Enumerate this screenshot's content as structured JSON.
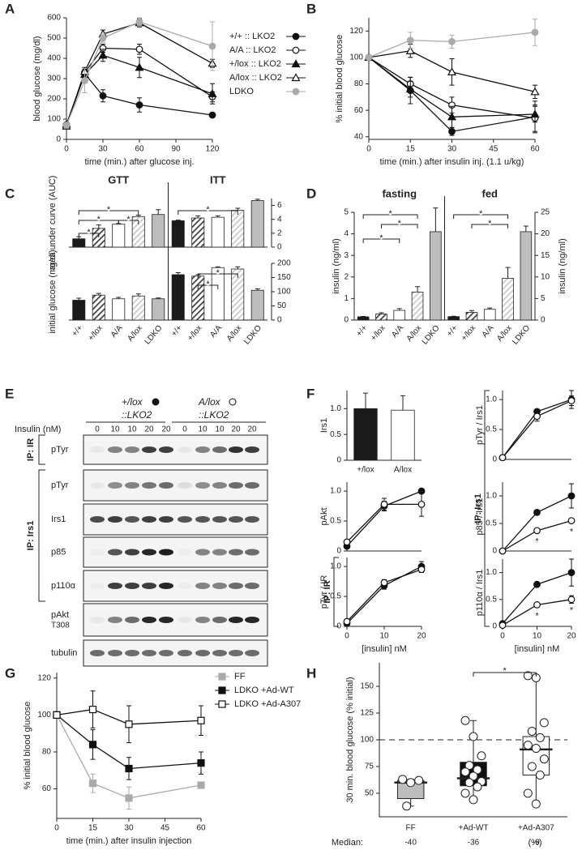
{
  "panel_labels": [
    "A",
    "B",
    "C",
    "D",
    "E",
    "F",
    "G",
    "H"
  ],
  "blot": {
    "genotypes": [
      "+/lox",
      "A/lox"
    ],
    "constructs": [
      "::LKO2",
      "::LKO2"
    ],
    "insulin_label": "Insulin (nM)",
    "lanes": [
      0,
      10,
      10,
      20,
      20,
      0,
      10,
      10,
      20,
      20
    ],
    "rows": [
      "pTyr",
      "pTyr",
      "Irs1",
      "p85",
      "p110α",
      "pAkt",
      "tubulin"
    ],
    "row_sublabel": "T308",
    "ip_labels": [
      "IP: IR",
      "IP: Irs1"
    ]
  },
  "chart_data": [
    {
      "type": "line",
      "ylabel": "blood glucose (mg/dl)",
      "xlabel": "time (min.) after glucose inj.",
      "x": [
        0,
        15,
        30,
        60,
        120
      ],
      "xlim": [
        0,
        120
      ],
      "xticks": [
        0,
        30,
        60,
        90,
        120
      ],
      "ylim": [
        0,
        600
      ],
      "yticks": [
        0,
        100,
        200,
        300,
        400,
        500,
        600
      ],
      "legend": "right",
      "series": [
        {
          "name": "+/+ :: LKO2",
          "color": "#111111",
          "marker": "circle",
          "filled": true,
          "values": [
            70,
            325,
            215,
            170,
            120
          ],
          "errors": [
            8,
            20,
            30,
            35,
            12
          ]
        },
        {
          "name": "A/A :: LKO2",
          "color": "#111111",
          "marker": "circle",
          "filled": false,
          "values": [
            72,
            330,
            450,
            445,
            210
          ],
          "errors": [
            8,
            20,
            20,
            25,
            25
          ]
        },
        {
          "name": "+/lox :: LKO2",
          "color": "#111111",
          "marker": "triangle",
          "filled": true,
          "values": [
            75,
            320,
            415,
            355,
            225
          ],
          "errors": [
            8,
            25,
            30,
            50,
            50
          ]
        },
        {
          "name": "A/lox :: LKO2",
          "color": "#111111",
          "marker": "triangle",
          "filled": false,
          "values": [
            65,
            335,
            520,
            575,
            375
          ],
          "errors": [
            8,
            20,
            20,
            20,
            20
          ]
        },
        {
          "name": "LDKO",
          "color": "#aaaaaa",
          "marker": "circle",
          "filled": true,
          "values": [
            70,
            290,
            500,
            580,
            460
          ],
          "errors": [
            8,
            60,
            20,
            20,
            120
          ]
        }
      ]
    },
    {
      "type": "line",
      "ylabel": "% initial blood glucose",
      "xlabel": "time (min.) after insulin inj. (1.1 u/kg)",
      "x": [
        0,
        15,
        30,
        60
      ],
      "xlim": [
        0,
        60
      ],
      "xticks": [
        0,
        15,
        30,
        45,
        60
      ],
      "ylim": [
        38,
        130
      ],
      "yticks": [
        40,
        60,
        80,
        100,
        120
      ],
      "series": [
        {
          "color": "#111111",
          "marker": "circle",
          "filled": true,
          "values": [
            100,
            75,
            44,
            55
          ],
          "errors": [
            0,
            10,
            3,
            12
          ]
        },
        {
          "color": "#111111",
          "marker": "circle",
          "filled": false,
          "values": [
            100,
            80,
            64,
            54
          ],
          "errors": [
            0,
            5,
            6,
            10
          ]
        },
        {
          "color": "#111111",
          "marker": "triangle",
          "filled": true,
          "values": [
            100,
            76,
            55,
            57
          ],
          "errors": [
            0,
            6,
            8,
            6
          ]
        },
        {
          "color": "#111111",
          "marker": "triangle",
          "filled": false,
          "values": [
            100,
            105,
            89,
            74
          ],
          "errors": [
            0,
            5,
            10,
            5
          ]
        },
        {
          "color": "#aaaaaa",
          "marker": "circle",
          "filled": true,
          "values": [
            100,
            113,
            112,
            119
          ],
          "errors": [
            0,
            6,
            5,
            10
          ]
        }
      ]
    },
    {
      "type": "bar",
      "ylabel": "area under curve (AUC)",
      "yaxis": "right",
      "ylim": [
        0,
        7
      ],
      "yticks": [
        0,
        2,
        4,
        6
      ],
      "colors": [
        "#1a1a1a",
        "#404040",
        "#ffffff",
        "#c8c8c8",
        "#bdbdbd"
      ],
      "hatch": [
        false,
        true,
        false,
        true,
        false
      ],
      "series": [
        {
          "name": "GTT",
          "values": [
            1.2,
            2.7,
            3.3,
            4.4,
            4.7
          ],
          "errors": [
            0.3,
            0.5,
            0.1,
            0.2,
            0.7
          ]
        },
        {
          "name": "ITT",
          "values": [
            3.8,
            4.2,
            4.3,
            5.3,
            6.7
          ],
          "errors": [
            0.1,
            0.3,
            0.2,
            0.3,
            0.2
          ]
        }
      ],
      "annotations": [
        "*",
        "*",
        "*",
        "*",
        "*"
      ]
    },
    {
      "type": "bar",
      "ylabel": "initial glucose (mg/dl)",
      "yaxis": "right",
      "ylim": [
        0,
        200
      ],
      "yticks": [
        0,
        50,
        100,
        150,
        200
      ],
      "categories": [
        "+/+",
        "+/lox",
        "A/A",
        "A/lox",
        "LDKO"
      ],
      "colors": [
        "#1a1a1a",
        "#404040",
        "#ffffff",
        "#c8c8c8",
        "#bdbdbd"
      ],
      "hatch": [
        false,
        true,
        false,
        true,
        false
      ],
      "series": [
        {
          "values": [
            70,
            88,
            75,
            85,
            75
          ],
          "errors": [
            7,
            6,
            5,
            7,
            3
          ]
        },
        {
          "values": [
            160,
            155,
            185,
            180,
            105
          ],
          "errors": [
            7,
            5,
            3,
            8,
            5
          ]
        }
      ],
      "annotations": [
        "*",
        "*"
      ]
    },
    {
      "type": "bar",
      "ylabel": "insulin (ng/ml)",
      "ylim": [
        0,
        5
      ],
      "yticks": [
        0,
        1,
        2,
        3,
        4,
        5
      ],
      "y2label": "insulin (ng/ml)",
      "y2lim": [
        0,
        25
      ],
      "y2ticks": [
        0,
        5,
        10,
        15,
        20,
        25
      ],
      "categories": [
        "+/+",
        "+/lox",
        "A/A",
        "A/lox",
        "LDKO"
      ],
      "colors": [
        "#1a1a1a",
        "#404040",
        "#ffffff",
        "#c8c8c8",
        "#bdbdbd"
      ],
      "hatch": [
        false,
        true,
        false,
        true,
        false
      ],
      "series": [
        {
          "name": "fasting",
          "values": [
            0.15,
            0.28,
            0.45,
            1.3,
            4.1
          ],
          "errors": [
            0.02,
            0.06,
            0.08,
            0.25,
            1.1
          ]
        },
        {
          "name": "fed",
          "axis": "y2",
          "values": [
            0.8,
            1.8,
            2.5,
            9.7,
            20.5
          ],
          "errors": [
            0.1,
            0.4,
            0.3,
            2.5,
            1.3
          ]
        }
      ],
      "annotations": [
        "*",
        "*",
        "*",
        "*",
        "*"
      ]
    },
    {
      "type": "bar",
      "ylabel": "Irs1",
      "ylim": [
        0,
        1.35
      ],
      "yticks": [
        0,
        0.5,
        {
          "value": 1,
          "label": "1.0"
        }
      ],
      "categories": [
        "+/lox",
        "A/lox"
      ],
      "colors": [
        "#1a1a1a",
        "#ffffff"
      ],
      "hatch": [
        false,
        false
      ],
      "series": [
        {
          "values": [
            1.0,
            0.97
          ],
          "errors": [
            0.3,
            0.28
          ]
        }
      ]
    },
    {
      "type": "line",
      "ylabel": "pAkt",
      "x": [
        0,
        10,
        20
      ],
      "xlim": [
        0,
        20
      ],
      "ylim": [
        0,
        1.15
      ],
      "yticks": [
        0,
        0.5,
        {
          "value": 1,
          "label": "1.0"
        }
      ],
      "series": [
        {
          "color": "#111111",
          "marker": "circle",
          "filled": true,
          "values": [
            0.08,
            0.75,
            1.0
          ],
          "errors": [
            0.02,
            0.08,
            0.03
          ]
        },
        {
          "color": "#111111",
          "marker": "circle",
          "filled": false,
          "values": [
            0.15,
            0.78,
            0.78
          ],
          "errors": [
            0.02,
            0.1,
            0.2
          ]
        }
      ]
    },
    {
      "type": "line",
      "ylabel": "pTyr / IR",
      "xlabel": "[insulin] nM",
      "side_label": "IP: IR",
      "x": [
        0,
        10,
        20
      ],
      "xlim": [
        0,
        20
      ],
      "xticks": [
        0,
        10,
        20
      ],
      "ylim": [
        0,
        1.15
      ],
      "yticks": [
        0,
        0.5,
        {
          "value": 1,
          "label": "1.0"
        }
      ],
      "series": [
        {
          "color": "#111111",
          "marker": "circle",
          "filled": true,
          "values": [
            0.05,
            0.68,
            1.0
          ],
          "errors": [
            0.02,
            0.06,
            0.08
          ]
        },
        {
          "color": "#111111",
          "marker": "circle",
          "filled": false,
          "values": [
            0.08,
            0.73,
            0.95
          ],
          "errors": [
            0.02,
            0.05,
            0.05
          ]
        }
      ]
    },
    {
      "type": "line",
      "ylabel": "pTyr / Irs1",
      "x": [
        0,
        10,
        20
      ],
      "xlim": [
        0,
        20
      ],
      "ylim": [
        0,
        1.15
      ],
      "yticks": [
        0,
        0.5,
        {
          "value": 1,
          "label": "1.0"
        }
      ],
      "series": [
        {
          "color": "#111111",
          "marker": "circle",
          "filled": true,
          "values": [
            0.03,
            0.8,
            1.0
          ],
          "errors": [
            0.01,
            0.03,
            0.15
          ]
        },
        {
          "color": "#111111",
          "marker": "circle",
          "filled": false,
          "values": [
            0.03,
            0.72,
            0.98
          ],
          "errors": [
            0.01,
            0.08,
            0.08
          ]
        }
      ]
    },
    {
      "type": "line",
      "ylabel": "p85 / Irs1",
      "side_label": "IP: Irs1",
      "x": [
        0,
        10,
        20
      ],
      "xlim": [
        0,
        20
      ],
      "ylim": [
        0,
        1.25
      ],
      "yticks": [
        0,
        0.5,
        {
          "value": 1,
          "label": "1.0"
        }
      ],
      "series": [
        {
          "color": "#111111",
          "marker": "circle",
          "filled": true,
          "values": [
            0,
            0.7,
            1.0
          ],
          "errors": [
            0,
            0.02,
            0.22
          ]
        },
        {
          "color": "#111111",
          "marker": "circle",
          "filled": false,
          "values": [
            0,
            0.37,
            0.55
          ],
          "errors": [
            0,
            0.02,
            0.02
          ]
        }
      ],
      "annotations": [
        "*",
        "*"
      ]
    },
    {
      "type": "line",
      "ylabel": "p110α / Irs1",
      "xlabel": "[insulin] nM",
      "x": [
        0,
        10,
        20
      ],
      "xlim": [
        0,
        20
      ],
      "xticks": [
        0,
        10,
        20
      ],
      "ylim": [
        0,
        1.25
      ],
      "yticks": [
        0,
        0.5,
        {
          "value": 1,
          "label": "1.0"
        }
      ],
      "series": [
        {
          "color": "#111111",
          "marker": "circle",
          "filled": true,
          "values": [
            0.05,
            0.78,
            1.0
          ],
          "errors": [
            0.01,
            0.03,
            0.25
          ]
        },
        {
          "color": "#111111",
          "marker": "circle",
          "filled": false,
          "values": [
            0.02,
            0.4,
            0.5
          ],
          "errors": [
            0.01,
            0.02,
            0.07
          ]
        }
      ],
      "annotations": [
        "*",
        "*"
      ]
    },
    {
      "type": "line",
      "ylabel": "% initial blood glucose",
      "xlabel": "time (min.) after insulin injection",
      "x": [
        0,
        15,
        30,
        60
      ],
      "xlim": [
        0,
        60
      ],
      "xticks": [
        0,
        15,
        30,
        45,
        60
      ],
      "ylim": [
        44,
        123
      ],
      "yticks": [
        60,
        80,
        100,
        120
      ],
      "legend": "top-right",
      "series": [
        {
          "name": "FF",
          "color": "#aaaaaa",
          "marker": "square",
          "filled": true,
          "values": [
            100,
            63,
            55,
            62
          ],
          "errors": [
            0,
            5,
            6,
            1
          ]
        },
        {
          "name": "LDKO +Ad-WT",
          "color": "#111111",
          "marker": "square",
          "filled": true,
          "values": [
            100,
            84,
            71,
            74
          ],
          "errors": [
            0,
            8,
            6,
            6
          ]
        },
        {
          "name": "LDKO +Ad-A307",
          "color": "#111111",
          "marker": "square",
          "filled": false,
          "values": [
            100,
            103,
            95,
            97
          ],
          "errors": [
            0,
            10,
            10,
            8
          ]
        }
      ]
    },
    {
      "type": "box",
      "ylabel": "30 min. blood glucose (% initial)",
      "ylim": [
        28,
        172
      ],
      "yticks": [
        50,
        75,
        100,
        125,
        150
      ],
      "reference": 100,
      "categories": [
        "FF",
        "+Ad-WT",
        "+Ad-A307"
      ],
      "colors": [
        "#bdbdbd",
        "#111111",
        "#ffffff"
      ],
      "boxes": [
        {
          "min": 38,
          "q1": 45,
          "median": 60,
          "q3": 62,
          "max": 63,
          "points": [
            63,
            60,
            62,
            38
          ]
        },
        {
          "min": 44,
          "q1": 57,
          "median": 64,
          "q3": 79,
          "max": 118,
          "points": [
            118,
            103,
            85,
            76,
            72,
            70,
            66,
            61,
            60,
            56,
            50,
            44
          ]
        },
        {
          "min": 40,
          "q1": 67,
          "median": 91,
          "q3": 103,
          "max": 160,
          "points": [
            160,
            158,
            116,
            108,
            102,
            95,
            92,
            82,
            75,
            67,
            50,
            40
          ]
        }
      ],
      "median_label": "Median:",
      "median_change": [
        -40,
        -36,
        -9
      ],
      "median_unit": "(%)",
      "annotations": [
        "*"
      ]
    }
  ]
}
